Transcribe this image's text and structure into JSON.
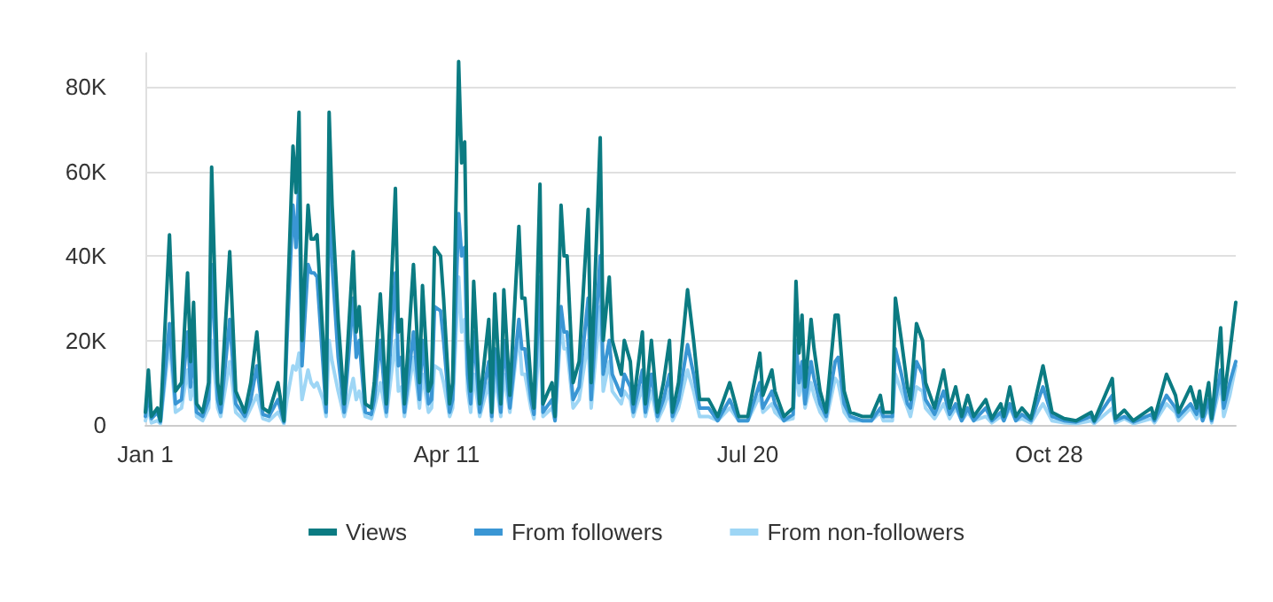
{
  "chart_data": {
    "type": "line",
    "legend": "bottom",
    "grid": "y",
    "marker": "none",
    "line_style": "solid",
    "x": [
      "--01-01",
      "--01-02",
      "--01-03",
      "--01-05",
      "--01-06",
      "--01-09",
      "--01-11",
      "--01-13",
      "--01-15",
      "--01-16",
      "--01-17",
      "--01-18",
      "--01-20",
      "--01-22",
      "--01-23",
      "--01-25",
      "--01-26",
      "--01-29",
      "--01-31",
      "--02-03",
      "--02-05",
      "--02-07",
      "--02-09",
      "--02-11",
      "--02-14",
      "--02-16",
      "--02-17",
      "--02-19",
      "--02-20",
      "--02-21",
      "--02-22",
      "--02-24",
      "--02-25",
      "--02-26",
      "--02-27",
      "--03-01",
      "--03-02",
      "--03-03",
      "--03-04",
      "--03-06",
      "--03-08",
      "--03-11",
      "--03-12",
      "--03-13",
      "--03-15",
      "--03-17",
      "--03-18",
      "--03-20",
      "--03-22",
      "--03-25",
      "--03-26",
      "--03-27",
      "--03-28",
      "--03-31",
      "--04-02",
      "--04-03",
      "--04-05",
      "--04-06",
      "--04-07",
      "--04-09",
      "--04-10",
      "--04-12",
      "--04-13",
      "--04-15",
      "--04-16",
      "--04-17",
      "--04-18",
      "--04-19",
      "--04-20",
      "--04-22",
      "--04-25",
      "--04-26",
      "--04-27",
      "--04-29",
      "--04-30",
      "--05-02",
      "--05-05",
      "--05-06",
      "--05-07",
      "--05-09",
      "--05-10",
      "--05-12",
      "--05-13",
      "--05-16",
      "--05-17",
      "--05-19",
      "--05-20",
      "--05-21",
      "--05-23",
      "--05-25",
      "--05-28",
      "--05-29",
      "--06-01",
      "--06-02",
      "--06-04",
      "--06-05",
      "--06-08",
      "--06-09",
      "--06-11",
      "--06-12",
      "--06-15",
      "--06-16",
      "--06-18",
      "--06-20",
      "--06-22",
      "--06-24",
      "--06-25",
      "--06-27",
      "--06-30",
      "--07-02",
      "--07-04",
      "--07-07",
      "--07-10",
      "--07-14",
      "--07-17",
      "--07-20",
      "--07-24",
      "--07-25",
      "--07-28",
      "--07-29",
      "--08-01",
      "--08-04",
      "--08-05",
      "--08-06",
      "--08-07",
      "--08-08",
      "--08-10",
      "--08-11",
      "--08-13",
      "--08-15",
      "--08-18",
      "--08-19",
      "--08-21",
      "--08-23",
      "--08-27",
      "--08-30",
      "--09-02",
      "--09-03",
      "--09-06",
      "--09-07",
      "--09-09",
      "--09-11",
      "--09-12",
      "--09-14",
      "--09-16",
      "--09-17",
      "--09-20",
      "--09-23",
      "--09-25",
      "--09-27",
      "--09-29",
      "--10-01",
      "--10-03",
      "--10-07",
      "--10-09",
      "--10-12",
      "--10-13",
      "--10-15",
      "--10-17",
      "--10-19",
      "--10-22",
      "--10-26",
      "--10-29",
      "--11-02",
      "--11-06",
      "--11-11",
      "--11-12",
      "--11-18",
      "--11-19",
      "--11-22",
      "--11-25",
      "--12-01",
      "--12-02",
      "--12-06",
      "--12-09",
      "--12-10",
      "--12-14",
      "--12-16",
      "--12-17",
      "--12-18",
      "--12-20",
      "--12-21",
      "--12-24",
      "--12-25",
      "--12-27",
      "--12-29"
    ],
    "xlim": [
      "--01-01",
      "--12-29"
    ],
    "xticks": [
      {
        "value": "--01-01",
        "label": "Jan 1"
      },
      {
        "value": "--04-11",
        "label": "Apr 11"
      },
      {
        "value": "--07-20",
        "label": "Jul 20"
      },
      {
        "value": "--10-28",
        "label": "Oct 28"
      }
    ],
    "ylim": [
      0,
      88000
    ],
    "yticks": [
      {
        "value": 0,
        "label": "0"
      },
      {
        "value": 20000,
        "label": "20K"
      },
      {
        "value": 40000,
        "label": "40K"
      },
      {
        "value": 60000,
        "label": "60K"
      },
      {
        "value": 80000,
        "label": "80K"
      }
    ],
    "series": [
      {
        "name": "Views",
        "color": "#0b7b82",
        "values": [
          3000,
          13000,
          2000,
          4000,
          1000,
          45000,
          8000,
          10000,
          36000,
          15000,
          29000,
          5000,
          3000,
          10000,
          61000,
          10000,
          5000,
          41000,
          8000,
          3000,
          10000,
          22000,
          4000,
          3000,
          10000,
          1000,
          25000,
          66000,
          55000,
          74000,
          20000,
          52000,
          44000,
          44000,
          45000,
          20000,
          5000,
          74000,
          52000,
          25000,
          5000,
          41000,
          22000,
          28000,
          5000,
          4000,
          10000,
          31000,
          5000,
          56000,
          22000,
          25000,
          5000,
          38000,
          10000,
          33000,
          8000,
          10000,
          42000,
          40000,
          30000,
          5000,
          10000,
          86000,
          62000,
          67000,
          20000,
          8000,
          34000,
          5000,
          25000,
          3000,
          31000,
          5000,
          32000,
          7000,
          47000,
          30000,
          30000,
          10000,
          4000,
          57000,
          5000,
          10000,
          2000,
          52000,
          40000,
          40000,
          10000,
          15000,
          51000,
          10000,
          68000,
          20000,
          35000,
          20000,
          12000,
          20000,
          15000,
          5000,
          22000,
          5000,
          20000,
          3000,
          10000,
          20000,
          3000,
          10000,
          32000,
          20000,
          6000,
          6000,
          2000,
          10000,
          2000,
          2000,
          17000,
          7000,
          13000,
          8000,
          2000,
          4000,
          34000,
          17000,
          26000,
          9000,
          25000,
          18000,
          8000,
          3000,
          26000,
          26000,
          8000,
          3000,
          2000,
          2000,
          7000,
          3000,
          3000,
          30000,
          20000,
          9000,
          6000,
          24000,
          20000,
          10000,
          4000,
          13000,
          4000,
          9000,
          2000,
          7000,
          2000,
          6000,
          1500,
          5000,
          2000,
          9000,
          2000,
          4000,
          1500,
          14000,
          3000,
          1500,
          1000,
          3000,
          1000,
          11000,
          1500,
          3500,
          1000,
          4000,
          1500,
          12000,
          7000,
          3000,
          9000,
          4000,
          8000,
          2000,
          10000,
          1500,
          23000,
          6000,
          17000,
          29000
        ]
      },
      {
        "name": "From followers",
        "color": "#3a96d4",
        "values": [
          2000,
          8000,
          1500,
          3000,
          700,
          24000,
          5000,
          6000,
          22000,
          9000,
          18000,
          3000,
          2000,
          6000,
          38000,
          6000,
          3000,
          25000,
          5000,
          2000,
          6000,
          14000,
          2500,
          2000,
          6000,
          700,
          20000,
          52000,
          42000,
          58000,
          14000,
          38000,
          36000,
          36000,
          35000,
          14000,
          3000,
          55000,
          38000,
          16000,
          3000,
          30000,
          16000,
          20000,
          3000,
          2500,
          6000,
          20000,
          3000,
          36000,
          14000,
          16000,
          3000,
          22000,
          6000,
          20000,
          5000,
          6000,
          28000,
          27000,
          20000,
          3000,
          6000,
          50000,
          40000,
          42000,
          12000,
          5000,
          22000,
          3000,
          15000,
          2000,
          18000,
          3000,
          20000,
          4000,
          25000,
          18000,
          18000,
          6000,
          2500,
          35000,
          3000,
          6000,
          1000,
          28000,
          22000,
          22000,
          6000,
          9000,
          30000,
          6000,
          40000,
          12000,
          20000,
          12000,
          7000,
          12000,
          9000,
          3000,
          13000,
          3000,
          12000,
          2000,
          6000,
          12000,
          2000,
          6000,
          19000,
          12000,
          4000,
          4000,
          1000,
          6000,
          1000,
          1000,
          10000,
          4000,
          8000,
          5000,
          1000,
          2500,
          20000,
          10000,
          15000,
          5000,
          15000,
          11000,
          5000,
          2000,
          15000,
          16000,
          5000,
          2000,
          1000,
          1000,
          4000,
          2000,
          2000,
          18000,
          12000,
          5000,
          4000,
          15000,
          12000,
          6000,
          2500,
          8000,
          2500,
          5000,
          1000,
          4000,
          1000,
          4000,
          1000,
          3000,
          1000,
          5000,
          1000,
          2500,
          1000,
          9000,
          2000,
          1000,
          700,
          2000,
          700,
          7000,
          1000,
          2000,
          700,
          2500,
          1000,
          7000,
          4000,
          2000,
          5000,
          2500,
          5000,
          1000,
          6000,
          1000,
          13000,
          4000,
          10000,
          15000
        ]
      },
      {
        "name": "From non-followers",
        "color": "#9ed6f5",
        "values": [
          1000,
          4000,
          500,
          1000,
          300,
          20000,
          3000,
          4000,
          13000,
          6000,
          10000,
          2000,
          1000,
          4000,
          20000,
          4000,
          2000,
          15000,
          3000,
          1000,
          4000,
          7000,
          1500,
          1000,
          3000,
          300,
          6000,
          14000,
          13000,
          17000,
          6000,
          13000,
          10000,
          9000,
          10000,
          6000,
          2000,
          20000,
          15000,
          8000,
          2000,
          11000,
          6000,
          8000,
          2000,
          1500,
          4000,
          10000,
          2000,
          20000,
          8000,
          9000,
          2000,
          16000,
          4000,
          12000,
          3000,
          4000,
          14000,
          13000,
          10000,
          2000,
          4000,
          35000,
          22000,
          25000,
          8000,
          3000,
          12000,
          2000,
          10000,
          1000,
          12000,
          2000,
          12000,
          3000,
          22000,
          12000,
          12000,
          4000,
          1500,
          22000,
          2000,
          4000,
          1000,
          24000,
          18000,
          18000,
          4000,
          6000,
          20000,
          4000,
          28000,
          8000,
          15000,
          8000,
          5000,
          8000,
          6000,
          2000,
          9000,
          2000,
          8000,
          1000,
          4000,
          8000,
          1000,
          4000,
          13000,
          8000,
          2000,
          2000,
          1000,
          4000,
          1000,
          1000,
          7000,
          3000,
          5000,
          3000,
          1000,
          1500,
          14000,
          7000,
          11000,
          4000,
          10000,
          7000,
          3000,
          1000,
          11000,
          10000,
          3000,
          1000,
          1000,
          1000,
          3000,
          1000,
          1000,
          12000,
          8000,
          4000,
          2000,
          9000,
          8000,
          4000,
          1500,
          5000,
          1500,
          4000,
          1000,
          3000,
          1000,
          2000,
          500,
          2000,
          1000,
          4000,
          1000,
          1500,
          500,
          5000,
          1000,
          500,
          300,
          1000,
          300,
          4000,
          500,
          1500,
          300,
          1500,
          500,
          5000,
          3000,
          1000,
          4000,
          1500,
          3000,
          1000,
          4000,
          500,
          10000,
          2000,
          7000,
          14000
        ]
      }
    ]
  }
}
